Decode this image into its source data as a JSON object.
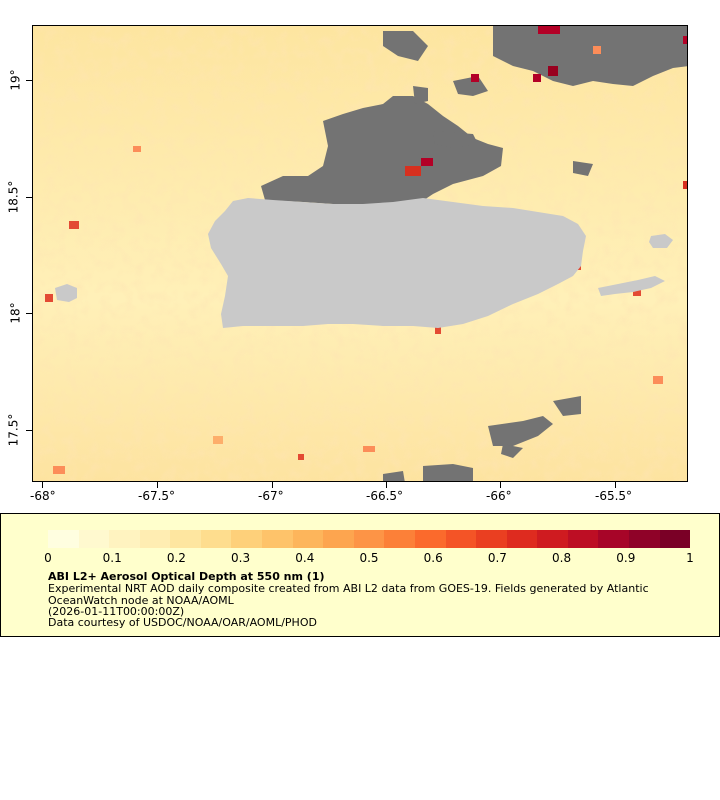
{
  "map": {
    "longitude_labels": [
      "-68°",
      "-67.5°",
      "-67°",
      "-66.5°",
      "-66°",
      "-65.5°"
    ],
    "latitude_labels": [
      "19°",
      "18.5°",
      "18°",
      "17.5°"
    ],
    "colors": {
      "land": "#c9c9c9",
      "no_data": "#737373",
      "background": "#fde7a6"
    }
  },
  "legend": {
    "tick_labels": [
      "0",
      "0.1",
      "0.2",
      "0.3",
      "0.4",
      "0.5",
      "0.6",
      "0.7",
      "0.8",
      "0.9",
      "1"
    ],
    "colorbar_colors": [
      "#fffee0",
      "#fff9cf",
      "#fff3c0",
      "#ffedb2",
      "#fee6a0",
      "#fedd8e",
      "#fed07a",
      "#fec36a",
      "#fdb55b",
      "#fda54f",
      "#fd9446",
      "#fc8038",
      "#fb6a2c",
      "#f45426",
      "#ea3f21",
      "#de2b1f",
      "#cf1b20",
      "#bd0e24",
      "#a70528",
      "#8f0228",
      "#7a0026"
    ],
    "title": "ABI L2+ Aerosol Optical Depth at 550 nm (1)",
    "description_line1": "Experimental NRT AOD daily composite created from ABI L2 data from GOES-19. Fields generated by Atlantic",
    "description_line2": "OceanWatch node at NOAA/AOML",
    "timestamp": "(2026-01-11T00:00:00Z)",
    "credit": "Data courtesy of USDOC/NOAA/OAR/AOML/PHOD"
  }
}
